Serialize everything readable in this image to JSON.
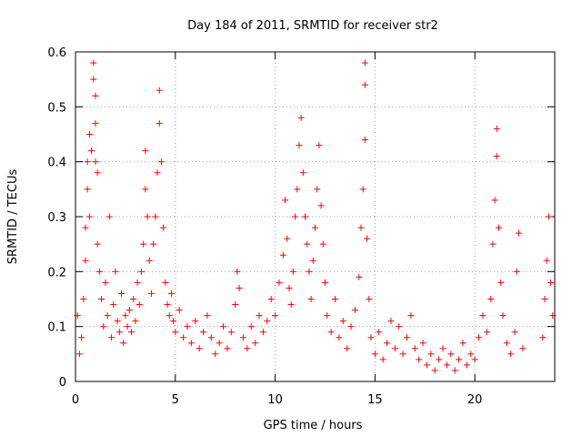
{
  "chart_data": {
    "type": "scatter",
    "title": "Day 184 of 2011, SRMTID for receiver str2",
    "xlabel": "GPS time / hours",
    "ylabel": "SRMTID / TECUs",
    "xlim": [
      0,
      24
    ],
    "ylim": [
      0,
      0.6
    ],
    "xticks": [
      0,
      5,
      10,
      15,
      20
    ],
    "xtick_labels": [
      "0",
      "5",
      "10",
      "15",
      "20"
    ],
    "yticks": [
      0,
      0.1,
      0.2,
      0.3,
      0.4,
      0.5,
      0.6
    ],
    "ytick_labels": [
      "0",
      "0.1",
      "0.2",
      "0.3",
      "0.4",
      "0.5",
      "0.6"
    ],
    "grid": true,
    "marker": "+",
    "color": "#ff0000",
    "series": [
      {
        "name": "SRMTID str2",
        "points": [
          [
            0.1,
            0.12
          ],
          [
            0.2,
            0.05
          ],
          [
            0.3,
            0.08
          ],
          [
            0.4,
            0.15
          ],
          [
            0.5,
            0.22
          ],
          [
            0.5,
            0.28
          ],
          [
            0.6,
            0.35
          ],
          [
            0.6,
            0.4
          ],
          [
            0.7,
            0.3
          ],
          [
            0.7,
            0.45
          ],
          [
            0.8,
            0.42
          ],
          [
            0.9,
            0.58
          ],
          [
            0.9,
            0.55
          ],
          [
            1.0,
            0.52
          ],
          [
            1.0,
            0.47
          ],
          [
            1.0,
            0.4
          ],
          [
            1.1,
            0.38
          ],
          [
            1.1,
            0.25
          ],
          [
            1.2,
            0.2
          ],
          [
            1.3,
            0.15
          ],
          [
            1.4,
            0.1
          ],
          [
            1.5,
            0.18
          ],
          [
            1.6,
            0.12
          ],
          [
            1.7,
            0.3
          ],
          [
            1.8,
            0.08
          ],
          [
            1.9,
            0.14
          ],
          [
            2.0,
            0.2
          ],
          [
            2.1,
            0.11
          ],
          [
            2.2,
            0.09
          ],
          [
            2.3,
            0.16
          ],
          [
            2.4,
            0.07
          ],
          [
            2.5,
            0.12
          ],
          [
            2.6,
            0.1
          ],
          [
            2.7,
            0.13
          ],
          [
            2.8,
            0.09
          ],
          [
            2.9,
            0.15
          ],
          [
            3.0,
            0.11
          ],
          [
            3.1,
            0.18
          ],
          [
            3.2,
            0.14
          ],
          [
            3.3,
            0.2
          ],
          [
            3.4,
            0.25
          ],
          [
            3.5,
            0.35
          ],
          [
            3.5,
            0.42
          ],
          [
            3.6,
            0.3
          ],
          [
            3.7,
            0.22
          ],
          [
            3.8,
            0.16
          ],
          [
            3.9,
            0.25
          ],
          [
            4.0,
            0.3
          ],
          [
            4.1,
            0.38
          ],
          [
            4.2,
            0.47
          ],
          [
            4.2,
            0.53
          ],
          [
            4.3,
            0.4
          ],
          [
            4.4,
            0.28
          ],
          [
            4.5,
            0.18
          ],
          [
            4.6,
            0.14
          ],
          [
            4.7,
            0.12
          ],
          [
            4.8,
            0.16
          ],
          [
            4.9,
            0.11
          ],
          [
            5.0,
            0.09
          ],
          [
            5.2,
            0.13
          ],
          [
            5.4,
            0.08
          ],
          [
            5.6,
            0.1
          ],
          [
            5.8,
            0.07
          ],
          [
            6.0,
            0.11
          ],
          [
            6.2,
            0.06
          ],
          [
            6.4,
            0.09
          ],
          [
            6.6,
            0.12
          ],
          [
            6.8,
            0.08
          ],
          [
            7.0,
            0.05
          ],
          [
            7.2,
            0.07
          ],
          [
            7.4,
            0.1
          ],
          [
            7.6,
            0.06
          ],
          [
            7.8,
            0.09
          ],
          [
            8.0,
            0.14
          ],
          [
            8.1,
            0.2
          ],
          [
            8.2,
            0.17
          ],
          [
            8.4,
            0.08
          ],
          [
            8.6,
            0.06
          ],
          [
            8.8,
            0.1
          ],
          [
            9.0,
            0.07
          ],
          [
            9.2,
            0.12
          ],
          [
            9.4,
            0.09
          ],
          [
            9.6,
            0.11
          ],
          [
            9.8,
            0.15
          ],
          [
            10.0,
            0.12
          ],
          [
            10.2,
            0.18
          ],
          [
            10.4,
            0.23
          ],
          [
            10.5,
            0.33
          ],
          [
            10.6,
            0.26
          ],
          [
            10.7,
            0.17
          ],
          [
            10.8,
            0.14
          ],
          [
            10.9,
            0.2
          ],
          [
            11.0,
            0.3
          ],
          [
            11.1,
            0.35
          ],
          [
            11.2,
            0.43
          ],
          [
            11.3,
            0.48
          ],
          [
            11.4,
            0.38
          ],
          [
            11.5,
            0.3
          ],
          [
            11.6,
            0.25
          ],
          [
            11.7,
            0.2
          ],
          [
            11.8,
            0.15
          ],
          [
            11.9,
            0.22
          ],
          [
            12.0,
            0.28
          ],
          [
            12.1,
            0.35
          ],
          [
            12.2,
            0.43
          ],
          [
            12.3,
            0.32
          ],
          [
            12.4,
            0.25
          ],
          [
            12.5,
            0.18
          ],
          [
            12.6,
            0.12
          ],
          [
            12.8,
            0.09
          ],
          [
            13.0,
            0.15
          ],
          [
            13.2,
            0.08
          ],
          [
            13.4,
            0.11
          ],
          [
            13.6,
            0.06
          ],
          [
            13.8,
            0.1
          ],
          [
            14.0,
            0.13
          ],
          [
            14.2,
            0.19
          ],
          [
            14.3,
            0.28
          ],
          [
            14.4,
            0.35
          ],
          [
            14.5,
            0.44
          ],
          [
            14.5,
            0.54
          ],
          [
            14.5,
            0.58
          ],
          [
            14.6,
            0.26
          ],
          [
            14.7,
            0.15
          ],
          [
            14.8,
            0.08
          ],
          [
            15.0,
            0.05
          ],
          [
            15.2,
            0.09
          ],
          [
            15.4,
            0.04
          ],
          [
            15.6,
            0.07
          ],
          [
            15.8,
            0.11
          ],
          [
            16.0,
            0.06
          ],
          [
            16.2,
            0.1
          ],
          [
            16.4,
            0.05
          ],
          [
            16.6,
            0.08
          ],
          [
            16.8,
            0.12
          ],
          [
            17.0,
            0.06
          ],
          [
            17.2,
            0.04
          ],
          [
            17.4,
            0.07
          ],
          [
            17.6,
            0.03
          ],
          [
            17.8,
            0.05
          ],
          [
            18.0,
            0.02
          ],
          [
            18.2,
            0.04
          ],
          [
            18.4,
            0.06
          ],
          [
            18.6,
            0.03
          ],
          [
            18.8,
            0.05
          ],
          [
            19.0,
            0.02
          ],
          [
            19.2,
            0.04
          ],
          [
            19.4,
            0.07
          ],
          [
            19.6,
            0.03
          ],
          [
            19.8,
            0.05
          ],
          [
            20.0,
            0.04
          ],
          [
            20.2,
            0.08
          ],
          [
            20.4,
            0.12
          ],
          [
            20.6,
            0.09
          ],
          [
            20.8,
            0.15
          ],
          [
            20.9,
            0.25
          ],
          [
            21.0,
            0.33
          ],
          [
            21.1,
            0.41
          ],
          [
            21.1,
            0.46
          ],
          [
            21.2,
            0.28
          ],
          [
            21.3,
            0.18
          ],
          [
            21.4,
            0.12
          ],
          [
            21.6,
            0.07
          ],
          [
            21.8,
            0.05
          ],
          [
            22.0,
            0.09
          ],
          [
            22.1,
            0.2
          ],
          [
            22.2,
            0.27
          ],
          [
            22.4,
            0.06
          ],
          [
            23.4,
            0.08
          ],
          [
            23.5,
            0.15
          ],
          [
            23.6,
            0.22
          ],
          [
            23.7,
            0.3
          ],
          [
            23.8,
            0.18
          ],
          [
            23.9,
            0.12
          ]
        ]
      }
    ]
  }
}
